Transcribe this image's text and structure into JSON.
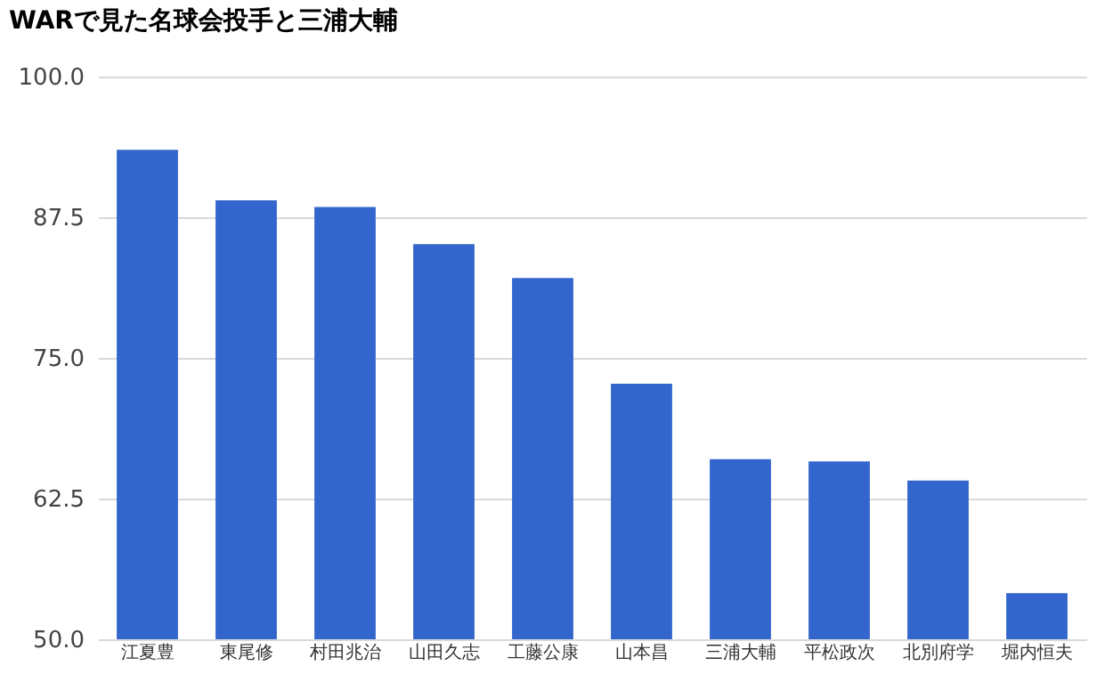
{
  "chart_data": {
    "type": "bar",
    "title": "WARで見た名球会投手と三浦大輔",
    "categories": [
      "江夏豊",
      "東尾修",
      "村田兆治",
      "山田久志",
      "工藤公康",
      "山本昌",
      "三浦大輔",
      "平松政次",
      "北別府学",
      "堀内恒夫"
    ],
    "values": [
      93.5,
      89.0,
      88.4,
      85.1,
      82.1,
      72.7,
      66.0,
      65.8,
      64.1,
      54.1
    ],
    "color": "#3366cc",
    "ylim": [
      50,
      100
    ],
    "yticks": [
      {
        "value": 50,
        "label": "50.0"
      },
      {
        "value": 62.5,
        "label": "62.5"
      },
      {
        "value": 75,
        "label": "75.0"
      },
      {
        "value": 87.5,
        "label": "87.5"
      },
      {
        "value": 100,
        "label": "100.0"
      }
    ],
    "grid": "y"
  }
}
